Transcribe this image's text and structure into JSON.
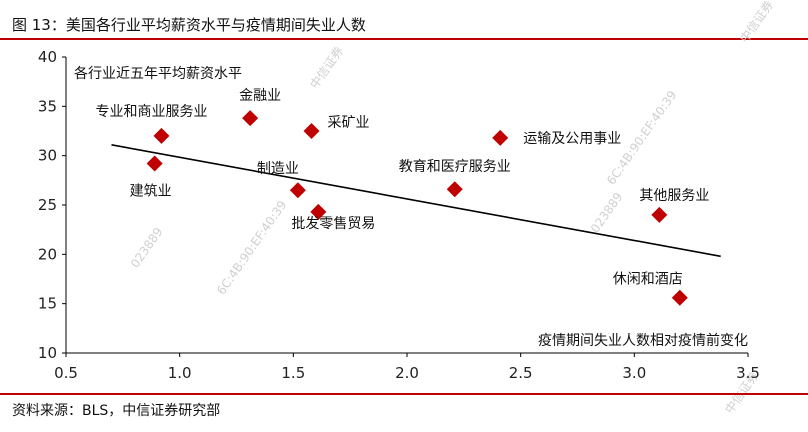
{
  "header": {
    "title": "图 13：美国各行业平均薪资水平与疫情期间失业人数"
  },
  "footer": {
    "source": "资料来源：BLS，中信证券研究部"
  },
  "watermark": {
    "brand": "中信证券",
    "code": "023889",
    "stamp": "6C:4B:90:EF:40:39"
  },
  "chart_data": {
    "type": "scatter",
    "title": "",
    "ylabel": "各行业近五年平均薪资水平",
    "xlabel": "疫情期间失业人数相对疫情前变化",
    "xlim": [
      0.5,
      3.5
    ],
    "ylim": [
      10,
      40
    ],
    "xticks": [
      "0.5",
      "1.0",
      "1.5",
      "2.0",
      "2.5",
      "3.0",
      "3.5"
    ],
    "yticks": [
      "10",
      "15",
      "20",
      "25",
      "30",
      "35",
      "40"
    ],
    "grid": false,
    "marker_color": "#c00000",
    "trendline": {
      "from": [
        0.7,
        31.1
      ],
      "to": [
        3.38,
        19.8
      ]
    },
    "points": [
      {
        "label": "专业和商业服务业",
        "x": 0.92,
        "y": 32.0
      },
      {
        "label": "建筑业",
        "x": 0.89,
        "y": 29.2
      },
      {
        "label": "金融业",
        "x": 1.31,
        "y": 33.8
      },
      {
        "label": "采矿业",
        "x": 1.58,
        "y": 32.5
      },
      {
        "label": "制造业",
        "x": 1.52,
        "y": 26.5
      },
      {
        "label": "批发零售贸易",
        "x": 1.61,
        "y": 24.3
      },
      {
        "label": "教育和医疗服务业",
        "x": 2.21,
        "y": 26.6
      },
      {
        "label": "运输及公用事业",
        "x": 2.41,
        "y": 31.8
      },
      {
        "label": "其他服务业",
        "x": 3.11,
        "y": 24.0
      },
      {
        "label": "休闲和酒店",
        "x": 3.2,
        "y": 15.6
      }
    ]
  }
}
